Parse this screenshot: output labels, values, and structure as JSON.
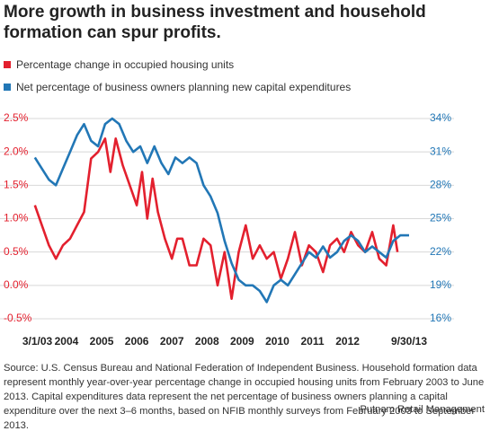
{
  "chart_data": {
    "type": "line",
    "title": "More growth in business investment and household formation can spur profits.",
    "source": "Source: U.S. Census Bureau and National Federation of Independent Business. Household formation data represent monthly year-over-year percentage change in occupied housing units from February 2003 to June 2013. Capital expenditures data represent the net percentage of business owners planning a capital expenditure over the next 3–6 months, based on NFIB monthly surveys from February 2003 to September 2013.",
    "credit": "Putnam Retail Management",
    "xlim": [
      2003.08,
      2013.75
    ],
    "xticks": [
      {
        "value": 2003.17,
        "label": "3/1/03"
      },
      2004,
      2005,
      2006,
      2007,
      2008,
      2009,
      2010,
      2011,
      2012,
      {
        "value": 2013.75,
        "label": "9/30/13"
      }
    ],
    "ylim": [
      -0.5,
      2.5
    ],
    "yticks": [
      {
        "value": -0.5,
        "label": "-0.5%"
      },
      {
        "value": 0,
        "label": "0.0%"
      },
      {
        "value": 0.5,
        "label": "0.5%"
      },
      {
        "value": 1,
        "label": "1.0%"
      },
      {
        "value": 1.5,
        "label": "1.5%"
      },
      {
        "value": 2,
        "label": "2.0%"
      },
      {
        "value": 2.5,
        "label": "2.5%"
      }
    ],
    "y2lim": [
      16,
      34
    ],
    "y2ticks": [
      {
        "value": 16,
        "label": "16%"
      },
      {
        "value": 19,
        "label": "19%"
      },
      {
        "value": 22,
        "label": "22%"
      },
      {
        "value": 25,
        "label": "25%"
      },
      {
        "value": 28,
        "label": "28%"
      },
      {
        "value": 31,
        "label": "31%"
      },
      {
        "value": 34,
        "label": "34%"
      }
    ],
    "grid": true,
    "series": [
      {
        "name": "Percentage change in occupied housing units",
        "color": "#e3202e",
        "x": [
          2003.1,
          2003.3,
          2003.5,
          2003.7,
          2003.9,
          2004.1,
          2004.3,
          2004.5,
          2004.7,
          2004.9,
          2005.1,
          2005.25,
          2005.4,
          2005.6,
          2005.8,
          2006.0,
          2006.15,
          2006.3,
          2006.45,
          2006.6,
          2006.8,
          2007.0,
          2007.15,
          2007.3,
          2007.5,
          2007.7,
          2007.9,
          2008.1,
          2008.3,
          2008.5,
          2008.7,
          2008.9,
          2009.1,
          2009.3,
          2009.5,
          2009.7,
          2009.9,
          2010.1,
          2010.3,
          2010.5,
          2010.7,
          2010.9,
          2011.1,
          2011.3,
          2011.5,
          2011.7,
          2011.9,
          2012.1,
          2012.3,
          2012.5,
          2012.7,
          2012.9,
          2013.1,
          2013.3,
          2013.42
        ],
        "values": [
          1.2,
          0.9,
          0.6,
          0.4,
          0.6,
          0.7,
          0.9,
          1.1,
          1.9,
          2.0,
          2.2,
          1.7,
          2.2,
          1.8,
          1.5,
          1.2,
          1.7,
          1.0,
          1.6,
          1.1,
          0.7,
          0.4,
          0.7,
          0.7,
          0.3,
          0.3,
          0.7,
          0.6,
          0.0,
          0.5,
          -0.2,
          0.5,
          0.9,
          0.4,
          0.6,
          0.4,
          0.5,
          0.1,
          0.4,
          0.8,
          0.3,
          0.6,
          0.5,
          0.2,
          0.6,
          0.7,
          0.5,
          0.8,
          0.6,
          0.5,
          0.8,
          0.4,
          0.3,
          0.9,
          0.5
        ]
      },
      {
        "name": "Net percentage of business owners planning new capital expenditures",
        "color": "#2277b6",
        "axis": "y2",
        "x": [
          2003.1,
          2003.3,
          2003.5,
          2003.7,
          2003.9,
          2004.1,
          2004.3,
          2004.5,
          2004.7,
          2004.9,
          2005.1,
          2005.3,
          2005.5,
          2005.7,
          2005.9,
          2006.1,
          2006.3,
          2006.5,
          2006.7,
          2006.9,
          2007.1,
          2007.3,
          2007.5,
          2007.7,
          2007.9,
          2008.1,
          2008.3,
          2008.5,
          2008.7,
          2008.9,
          2009.1,
          2009.3,
          2009.5,
          2009.7,
          2009.9,
          2010.1,
          2010.3,
          2010.5,
          2010.7,
          2010.9,
          2011.1,
          2011.3,
          2011.5,
          2011.7,
          2011.9,
          2012.1,
          2012.3,
          2012.5,
          2012.7,
          2012.9,
          2013.1,
          2013.3,
          2013.5,
          2013.75
        ],
        "values": [
          30.5,
          29.5,
          28.5,
          28,
          29.5,
          31,
          32.5,
          33.5,
          32,
          31.5,
          33.5,
          34,
          33.5,
          32,
          31,
          31.5,
          30,
          31.5,
          30,
          29,
          30.5,
          30,
          30.5,
          30,
          28,
          27,
          25.5,
          23,
          21,
          19.5,
          19,
          19,
          18.5,
          17.5,
          19,
          19.5,
          19,
          20,
          21,
          22,
          21.5,
          22.5,
          21.5,
          22,
          23,
          23.5,
          23,
          22,
          22.5,
          22,
          21.5,
          23,
          23.5,
          23.5
        ]
      }
    ]
  }
}
